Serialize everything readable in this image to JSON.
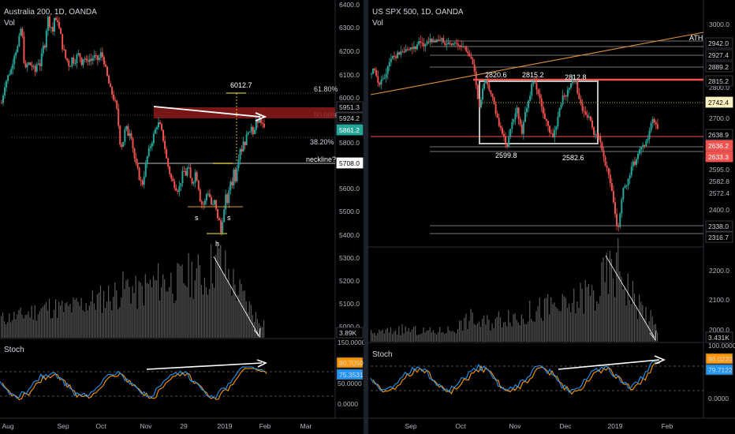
{
  "chart_data": [
    {
      "type": "candlestick",
      "title": "Australia 200, 1D, OANDA",
      "volume_label": "Vol",
      "price_axis_ticks": [
        "6400.0",
        "6300.0",
        "6200.0",
        "6100.0",
        "6000.0",
        "5800.0",
        "5700.0",
        "5600.0",
        "5500.0",
        "5400.0",
        "5300.0",
        "5200.0",
        "5100.0",
        "5000.0"
      ],
      "price_labels": [
        {
          "text": "5951.3",
          "style": "plain"
        },
        {
          "text": "5924.2",
          "style": "plain"
        },
        {
          "text": "5861.2",
          "style": "teal"
        },
        {
          "text": "5708.0",
          "style": "white"
        },
        {
          "text": "3.89K",
          "style": "plain"
        }
      ],
      "fib_labels": [
        "61.80%",
        "50.00%",
        "38.20%"
      ],
      "annotations": [
        "6012.7",
        "neckline?",
        "s",
        "s",
        "h"
      ],
      "x_ticks": [
        "Aug",
        "Sep",
        "Oct",
        "Nov",
        "29",
        "2019",
        "Feb",
        "Mar"
      ],
      "stoch": {
        "label": "Stoch",
        "axis_ticks": [
          "150.0000",
          "50.0000",
          "0.0000"
        ],
        "values": [
          "80.7050",
          "75.3531"
        ],
        "value_colors": [
          "#ff9800",
          "#2196f3"
        ]
      },
      "close_path": [
        [
          0,
          6000
        ],
        [
          4,
          6080
        ],
        [
          8,
          6120
        ],
        [
          12,
          6150
        ],
        [
          16,
          6220
        ],
        [
          20,
          6250
        ],
        [
          22,
          6290
        ],
        [
          24,
          6330
        ],
        [
          26,
          6290
        ],
        [
          28,
          6190
        ],
        [
          30,
          6150
        ],
        [
          33,
          6180
        ],
        [
          36,
          6170
        ],
        [
          39,
          6160
        ],
        [
          42,
          6140
        ],
        [
          45,
          6190
        ],
        [
          48,
          6170
        ],
        [
          50,
          6210
        ],
        [
          52,
          6250
        ],
        [
          54,
          6260
        ],
        [
          56,
          6330
        ],
        [
          58,
          6380
        ],
        [
          60,
          6350
        ],
        [
          62,
          6340
        ],
        [
          64,
          6320
        ],
        [
          66,
          6380
        ],
        [
          68,
          6360
        ],
        [
          70,
          6370
        ],
        [
          72,
          6330
        ],
        [
          74,
          6300
        ],
        [
          76,
          6250
        ],
        [
          78,
          6230
        ],
        [
          80,
          6200
        ],
        [
          82,
          6190
        ],
        [
          85,
          6160
        ],
        [
          88,
          6200
        ],
        [
          91,
          6180
        ],
        [
          94,
          6210
        ],
        [
          97,
          6220
        ],
        [
          100,
          6180
        ],
        [
          103,
          6210
        ],
        [
          106,
          6180
        ],
        [
          109,
          6200
        ],
        [
          112,
          6190
        ],
        [
          115,
          6210
        ],
        [
          118,
          6200
        ],
        [
          121,
          6190
        ],
        [
          124,
          6220
        ],
        [
          127,
          6200
        ],
        [
          130,
          6150
        ],
        [
          133,
          6100
        ],
        [
          136,
          6060
        ],
        [
          139,
          6030
        ],
        [
          142,
          6000
        ],
        [
          145,
          5950
        ],
        [
          147,
          5850
        ],
        [
          149,
          5800
        ],
        [
          152,
          5830
        ],
        [
          155,
          5900
        ],
        [
          158,
          5860
        ],
        [
          161,
          5880
        ],
        [
          164,
          5800
        ],
        [
          167,
          5730
        ],
        [
          170,
          5700
        ],
        [
          173,
          5650
        ],
        [
          176,
          5640
        ],
        [
          179,
          5700
        ],
        [
          182,
          5760
        ],
        [
          185,
          5800
        ],
        [
          188,
          5830
        ],
        [
          191,
          5870
        ],
        [
          194,
          5900
        ],
        [
          197,
          5910
        ],
        [
          200,
          5870
        ],
        [
          203,
          5820
        ],
        [
          206,
          5750
        ],
        [
          209,
          5700
        ],
        [
          212,
          5660
        ],
        [
          215,
          5640
        ],
        [
          218,
          5620
        ],
        [
          221,
          5610
        ],
        [
          224,
          5650
        ],
        [
          227,
          5700
        ],
        [
          230,
          5680
        ],
        [
          233,
          5720
        ],
        [
          236,
          5660
        ],
        [
          239,
          5640
        ],
        [
          242,
          5690
        ],
        [
          245,
          5650
        ],
        [
          248,
          5570
        ],
        [
          251,
          5540
        ],
        [
          254,
          5560
        ],
        [
          257,
          5610
        ],
        [
          260,
          5580
        ],
        [
          263,
          5530
        ],
        [
          266,
          5560
        ],
        [
          269,
          5500
        ],
        [
          272,
          5470
        ],
        [
          274,
          5420
        ],
        [
          276,
          5480
        ],
        [
          278,
          5520
        ],
        [
          280,
          5580
        ],
        [
          282,
          5560
        ],
        [
          284,
          5600
        ],
        [
          286,
          5650
        ],
        [
          288,
          5640
        ],
        [
          290,
          5700
        ],
        [
          292,
          5660
        ],
        [
          294,
          5720
        ],
        [
          296,
          5760
        ],
        [
          298,
          5800
        ],
        [
          300,
          5790
        ],
        [
          302,
          5830
        ],
        [
          304,
          5820
        ],
        [
          306,
          5850
        ],
        [
          308,
          5880
        ],
        [
          310,
          5860
        ],
        [
          312,
          5900
        ],
        [
          314,
          5870
        ],
        [
          316,
          5890
        ],
        [
          318,
          5920
        ],
        [
          320,
          5900
        ],
        [
          322,
          5930
        ],
        [
          324,
          5920
        ],
        [
          326,
          5900
        ],
        [
          328,
          5880
        ],
        [
          330,
          5861
        ]
      ],
      "volume_range": [
        3.89,
        33.0
      ],
      "volume_peaks": [
        [
          0,
          8
        ],
        [
          20,
          9
        ],
        [
          40,
          11
        ],
        [
          60,
          13
        ],
        [
          80,
          12
        ],
        [
          100,
          14
        ],
        [
          120,
          16
        ],
        [
          140,
          18
        ],
        [
          160,
          22
        ],
        [
          170,
          18
        ],
        [
          180,
          21
        ],
        [
          200,
          24
        ],
        [
          220,
          23
        ],
        [
          240,
          27
        ],
        [
          255,
          25
        ],
        [
          265,
          32
        ],
        [
          272,
          33
        ],
        [
          280,
          28
        ],
        [
          290,
          23
        ],
        [
          300,
          18
        ],
        [
          310,
          13
        ],
        [
          320,
          8
        ],
        [
          330,
          6
        ]
      ]
    },
    {
      "type": "candlestick",
      "title": "US SPX 500, 1D, OANDA",
      "volume_label": "Vol",
      "price_axis_ticks": [
        "3000.0",
        "2900.0",
        "2800.0",
        "2700.0",
        "2600.0",
        "2595.0",
        "2582.8",
        "2572.4",
        "2400.0",
        "2300.0",
        "2200.0",
        "2100.0",
        "2000.0"
      ],
      "price_labels": [
        {
          "text": "2942.0",
          "style": "plain"
        },
        {
          "text": "2927.4",
          "style": "plain"
        },
        {
          "text": "2889.2",
          "style": "plain"
        },
        {
          "text": "2815.2",
          "style": "plain"
        },
        {
          "text": "2742.4",
          "style": "yellow"
        },
        {
          "text": "2638.9",
          "style": "plain"
        },
        {
          "text": "2636.2",
          "style": "red"
        },
        {
          "text": "2633.3",
          "style": "red"
        },
        {
          "text": "2338.0",
          "style": "plain"
        },
        {
          "text": "2316.7",
          "style": "plain"
        },
        {
          "text": "3.431K",
          "style": "plain"
        }
      ],
      "annotations": [
        "ATH",
        "2820.6",
        "2815.2",
        "2812.8",
        "2599.8",
        "2582.6"
      ],
      "x_ticks": [
        "Sep",
        "Oct",
        "Nov",
        "Dec",
        "2019",
        "Feb"
      ],
      "stoch": {
        "label": "Stoch",
        "axis_ticks": [
          "100.0000",
          "0.0000"
        ],
        "values": [
          "86.0220",
          "79.7122"
        ],
        "value_colors": [
          "#ff9800",
          "#2196f3"
        ]
      },
      "close_path": [
        [
          0,
          2825
        ],
        [
          3,
          2840
        ],
        [
          6,
          2810
        ],
        [
          9,
          2790
        ],
        [
          12,
          2815
        ],
        [
          15,
          2800
        ],
        [
          18,
          2830
        ],
        [
          21,
          2850
        ],
        [
          24,
          2870
        ],
        [
          27,
          2880
        ],
        [
          30,
          2875
        ],
        [
          33,
          2890
        ],
        [
          36,
          2885
        ],
        [
          39,
          2895
        ],
        [
          42,
          2900
        ],
        [
          45,
          2890
        ],
        [
          48,
          2910
        ],
        [
          51,
          2905
        ],
        [
          54,
          2900
        ],
        [
          57,
          2915
        ],
        [
          60,
          2920
        ],
        [
          63,
          2910
        ],
        [
          66,
          2915
        ],
        [
          69,
          2925
        ],
        [
          72,
          2930
        ],
        [
          75,
          2920
        ],
        [
          78,
          2925
        ],
        [
          81,
          2935
        ],
        [
          84,
          2925
        ],
        [
          87,
          2930
        ],
        [
          90,
          2920
        ],
        [
          93,
          2925
        ],
        [
          96,
          2915
        ],
        [
          99,
          2920
        ],
        [
          102,
          2915
        ],
        [
          105,
          2915
        ],
        [
          108,
          2910
        ],
        [
          111,
          2905
        ],
        [
          114,
          2910
        ],
        [
          117,
          2895
        ],
        [
          120,
          2880
        ],
        [
          123,
          2860
        ],
        [
          125,
          2840
        ],
        [
          127,
          2810
        ],
        [
          129,
          2770
        ],
        [
          131,
          2740
        ],
        [
          133,
          2720
        ],
        [
          135,
          2760
        ],
        [
          137,
          2790
        ],
        [
          139,
          2810
        ],
        [
          141,
          2790
        ],
        [
          143,
          2780
        ],
        [
          145,
          2760
        ],
        [
          148,
          2750
        ],
        [
          151,
          2720
        ],
        [
          154,
          2690
        ],
        [
          157,
          2660
        ],
        [
          160,
          2640
        ],
        [
          163,
          2620
        ],
        [
          166,
          2610
        ],
        [
          169,
          2640
        ],
        [
          172,
          2680
        ],
        [
          175,
          2700
        ],
        [
          178,
          2720
        ],
        [
          181,
          2680
        ],
        [
          184,
          2650
        ],
        [
          187,
          2700
        ],
        [
          190,
          2730
        ],
        [
          193,
          2750
        ],
        [
          196,
          2790
        ],
        [
          199,
          2810
        ],
        [
          202,
          2780
        ],
        [
          205,
          2750
        ],
        [
          208,
          2730
        ],
        [
          211,
          2700
        ],
        [
          214,
          2680
        ],
        [
          217,
          2650
        ],
        [
          220,
          2640
        ],
        [
          223,
          2640
        ],
        [
          226,
          2660
        ],
        [
          229,
          2700
        ],
        [
          232,
          2740
        ],
        [
          235,
          2760
        ],
        [
          238,
          2750
        ],
        [
          241,
          2780
        ],
        [
          244,
          2800
        ],
        [
          247,
          2810
        ],
        [
          250,
          2800
        ],
        [
          252,
          2760
        ],
        [
          255,
          2740
        ],
        [
          258,
          2720
        ],
        [
          261,
          2700
        ],
        [
          264,
          2690
        ],
        [
          267,
          2690
        ],
        [
          270,
          2660
        ],
        [
          273,
          2640
        ],
        [
          276,
          2640
        ],
        [
          279,
          2620
        ],
        [
          282,
          2600
        ],
        [
          285,
          2560
        ],
        [
          288,
          2530
        ],
        [
          291,
          2500
        ],
        [
          294,
          2470
        ],
        [
          296,
          2430
        ],
        [
          298,
          2390
        ],
        [
          300,
          2360
        ],
        [
          302,
          2351
        ],
        [
          304,
          2400
        ],
        [
          306,
          2440
        ],
        [
          308,
          2470
        ],
        [
          311,
          2490
        ],
        [
          314,
          2500
        ],
        [
          317,
          2530
        ],
        [
          320,
          2550
        ],
        [
          323,
          2560
        ],
        [
          326,
          2580
        ],
        [
          329,
          2590
        ],
        [
          332,
          2600
        ],
        [
          335,
          2610
        ],
        [
          338,
          2630
        ],
        [
          341,
          2660
        ],
        [
          344,
          2680
        ],
        [
          347,
          2670
        ],
        [
          350,
          2650
        ],
        [
          352,
          2640
        ]
      ],
      "volume_range": [
        3.431,
        40.0
      ],
      "volume_peaks": [
        [
          0,
          4
        ],
        [
          20,
          5
        ],
        [
          40,
          6
        ],
        [
          60,
          5
        ],
        [
          80,
          5
        ],
        [
          100,
          6
        ],
        [
          125,
          12
        ],
        [
          130,
          9
        ],
        [
          150,
          10
        ],
        [
          170,
          14
        ],
        [
          180,
          11
        ],
        [
          200,
          15
        ],
        [
          220,
          17
        ],
        [
          240,
          16
        ],
        [
          255,
          21
        ],
        [
          265,
          24
        ],
        [
          275,
          22
        ],
        [
          285,
          30
        ],
        [
          295,
          34
        ],
        [
          300,
          36
        ],
        [
          305,
          37
        ],
        [
          310,
          30
        ],
        [
          320,
          22
        ],
        [
          330,
          17
        ],
        [
          340,
          12
        ],
        [
          350,
          6
        ]
      ]
    }
  ],
  "colors": {
    "up": "#26a69a",
    "down": "#ef5350",
    "volume": "#5a5a5a",
    "fib": "#9e9e9e",
    "zone": "#8b1a1a",
    "stoch_k": "#2196f3",
    "stoch_d": "#ff9800",
    "ath_line": "#e69138",
    "highlight_yellow": "#ffeb3b"
  }
}
